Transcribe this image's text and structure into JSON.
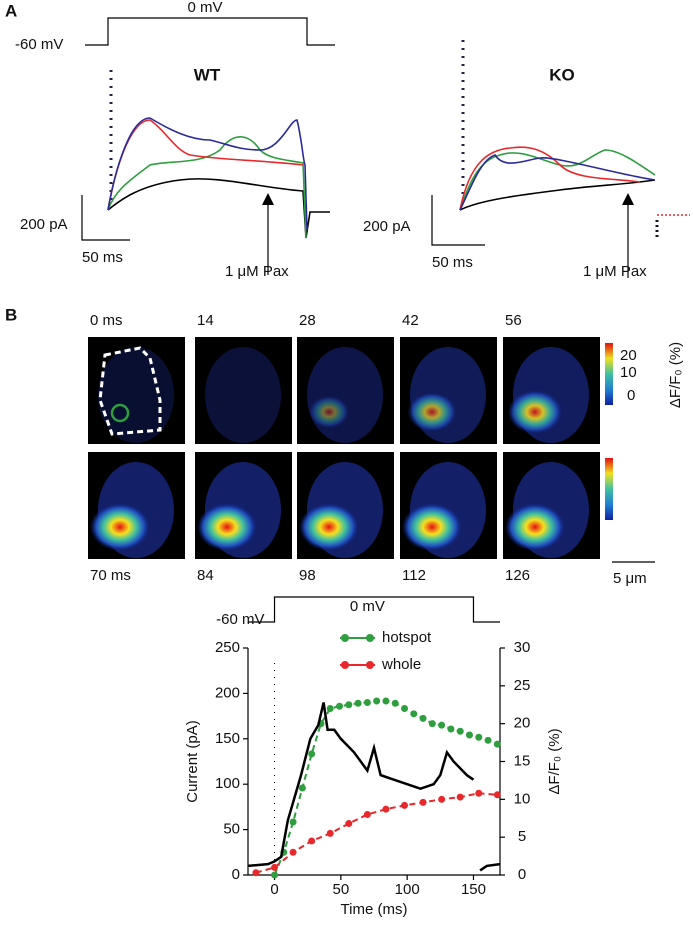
{
  "panel_a": {
    "label": "A",
    "protocol": {
      "hold": "-60 mV",
      "step": "0 mV"
    },
    "wt": {
      "title": "WT",
      "scale_current": "200 pA",
      "scale_time": "50 ms",
      "annotation": "1 μM Pax"
    },
    "ko": {
      "title": "KO",
      "scale_current": "200 pA",
      "scale_time": "50 ms",
      "annotation": "1 μM Pax"
    }
  },
  "panel_b": {
    "label": "B",
    "frames": [
      "0 ms",
      "14",
      "28",
      "42",
      "56",
      "70 ms",
      "84",
      "98",
      "112",
      "126"
    ],
    "colorbar": {
      "ticks": [
        "20",
        "10",
        "0"
      ],
      "label": "ΔF/F₀ (%)"
    },
    "scale": "5 μm"
  },
  "chart_data": {
    "type": "line",
    "annotations": [
      "-60 mV",
      "0 mV"
    ],
    "xlabel": "Time (ms)",
    "ylabel": "Current (pA)",
    "y2label": "ΔF/F₀ (%)",
    "xlim": [
      -20,
      170
    ],
    "xticks": [
      0,
      50,
      100,
      150
    ],
    "ylim": [
      0,
      250
    ],
    "yticks": [
      0,
      50,
      100,
      150,
      200,
      250
    ],
    "y2lim": [
      0,
      30
    ],
    "y2ticks": [
      0,
      5,
      10,
      15,
      20,
      25,
      30
    ],
    "series": [
      {
        "name": "hotspot",
        "color": "#2e9e3e",
        "axis": "y2",
        "x": [
          0,
          7,
          14,
          21,
          28,
          35,
          42,
          49,
          56,
          63,
          70,
          77,
          84,
          91,
          98,
          105,
          112,
          119,
          126,
          133,
          140,
          147,
          154,
          161,
          168
        ],
        "values": [
          0,
          3,
          7,
          11.5,
          16,
          20,
          22,
          22.3,
          22.5,
          22.7,
          22.8,
          23,
          23,
          22.7,
          22,
          21.3,
          20.7,
          20,
          19.8,
          19.3,
          19,
          18.5,
          18.2,
          17.8,
          17.3
        ]
      },
      {
        "name": "whole",
        "color": "#e8282b",
        "axis": "y2",
        "x": [
          -14,
          0,
          14,
          28,
          42,
          56,
          70,
          84,
          98,
          112,
          126,
          140,
          154,
          168
        ],
        "values": [
          0.3,
          1,
          3,
          4.5,
          5.5,
          6.8,
          8,
          8.7,
          9.2,
          9.6,
          10,
          10.3,
          10.8,
          10.6
        ]
      },
      {
        "color": "#000000",
        "x": [
          -20,
          -5,
          0,
          5,
          10,
          20,
          27,
          33,
          37,
          40,
          45,
          50,
          60,
          70,
          75,
          80,
          90,
          100,
          110,
          120,
          125,
          130,
          135,
          145,
          150,
          152,
          155,
          160,
          170
        ],
        "values": [
          10,
          12,
          15,
          20,
          60,
          110,
          150,
          165,
          190,
          160,
          160,
          150,
          135,
          115,
          140,
          110,
          105,
          100,
          95,
          100,
          110,
          135,
          125,
          110,
          105,
          null,
          5,
          10,
          12
        ]
      }
    ]
  }
}
